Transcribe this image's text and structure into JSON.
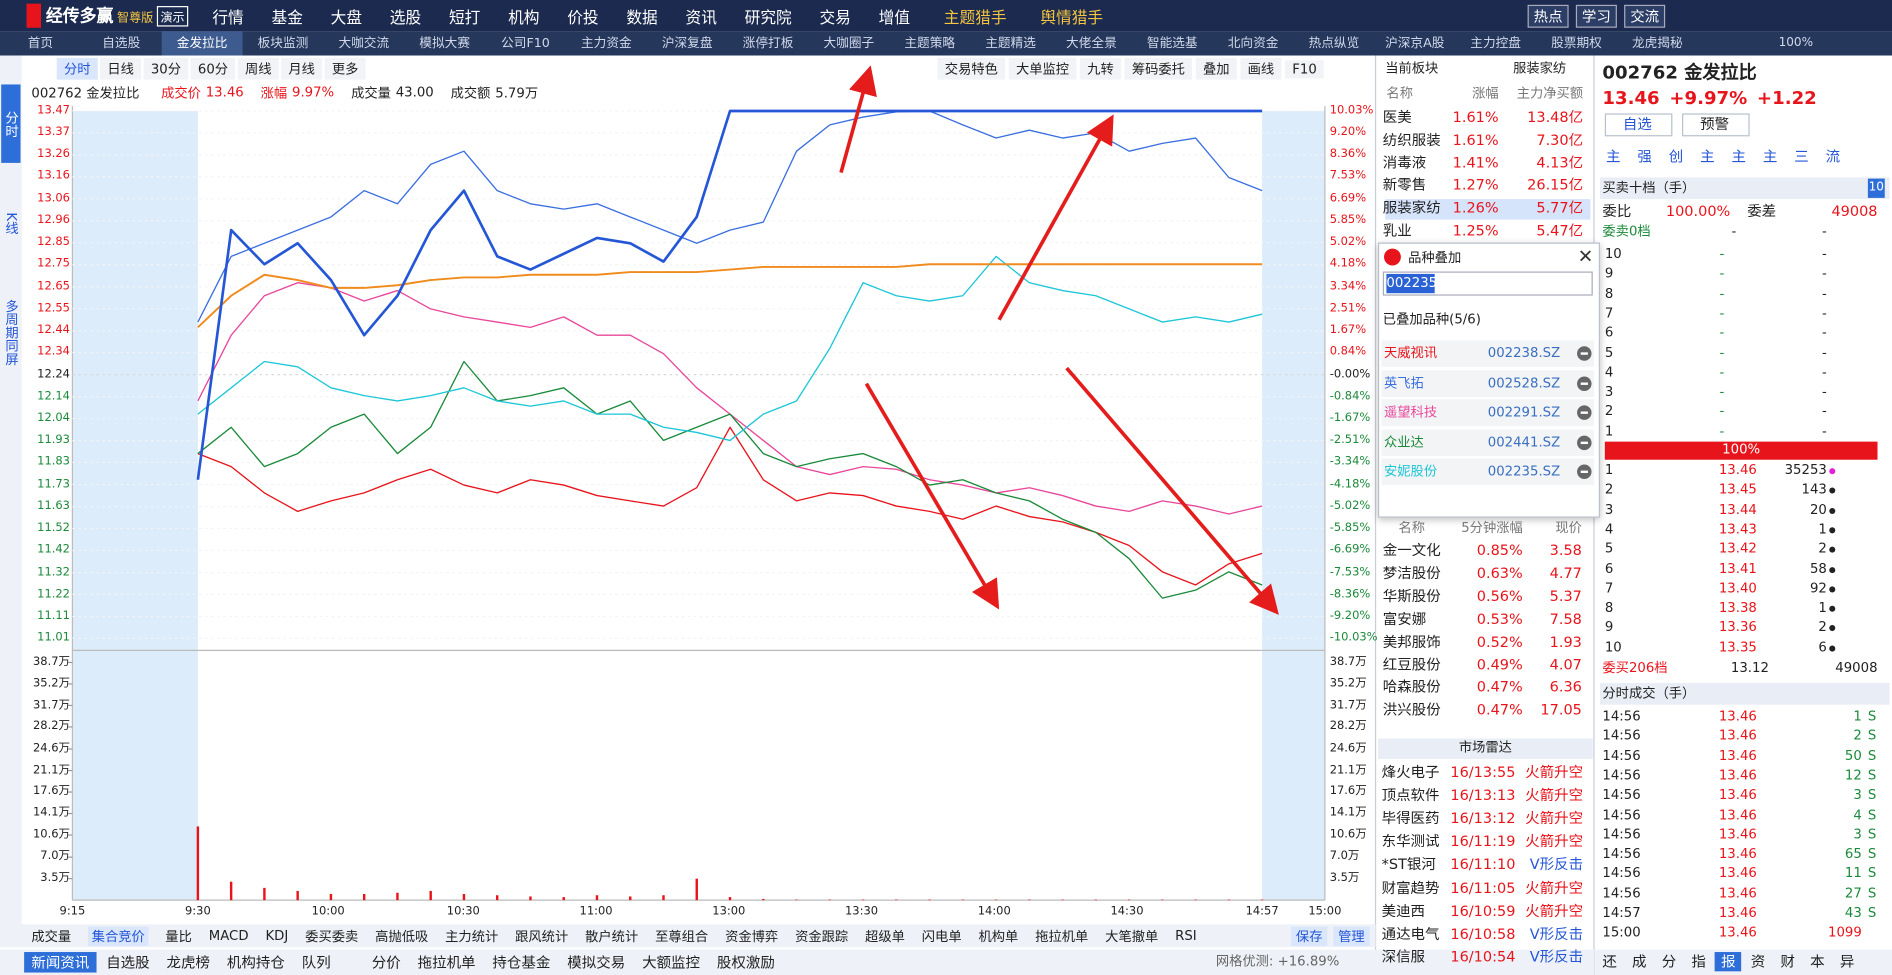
{
  "menu": {
    "logo": "经传多赢",
    "edition": "智尊版",
    "demo": "演示",
    "items": [
      "行情",
      "基金",
      "大盘",
      "选股",
      "短打",
      "机构",
      "价投",
      "数据",
      "资讯",
      "研究院",
      "交易",
      "增值"
    ],
    "hunters": [
      "主题猎手",
      "舆情猎手"
    ],
    "buttons": [
      "热点",
      "学习",
      "交流"
    ],
    "zoom": "100%"
  },
  "tabs": [
    "首页",
    "自选股",
    "金发拉比",
    "板块监测",
    "大咖交流",
    "模拟大赛",
    "公司F10",
    "主力资金",
    "沪深复盘",
    "涨停打板",
    "大咖圈子",
    "主题策略",
    "主题精选",
    "大佬全景",
    "智能选基",
    "北向资金",
    "热点纵览",
    "沪深京A股",
    "主力控盘",
    "股票期权",
    "龙虎揭秘"
  ],
  "sidebar": [
    "分时",
    "K线",
    "多周期同屏"
  ],
  "toolbar": {
    "periods": [
      "分时",
      "日线",
      "30分",
      "60分",
      "周线",
      "月线",
      "更多"
    ],
    "tools": [
      "交易特色",
      "大单监控",
      "九转",
      "筹码委托",
      "叠加",
      "画线",
      "F10"
    ]
  },
  "quote_line": [
    [
      "002762 金发拉比",
      ""
    ],
    [
      "成交价",
      "13.46"
    ],
    [
      "涨幅",
      "9.97%"
    ],
    [
      "成交量",
      "43.00"
    ],
    [
      "成交额",
      "5.79万"
    ]
  ],
  "chart": {
    "type": "line",
    "ylim": [
      -10.03,
      10.03
    ],
    "yticks": [
      {
        "value": 10.03,
        "label": "10.03%"
      },
      {
        "value": 9.2,
        "label": "9.20%"
      },
      {
        "value": 8.36,
        "label": "8.36%"
      },
      {
        "value": 7.53,
        "label": "7.53%"
      },
      {
        "value": 6.69,
        "label": "6.69%"
      },
      {
        "value": 5.85,
        "label": "5.85%"
      },
      {
        "value": 5.02,
        "label": "5.02%"
      },
      {
        "value": 4.18,
        "label": "4.18%"
      },
      {
        "value": 3.34,
        "label": "3.34%"
      },
      {
        "value": 2.51,
        "label": "2.51%"
      },
      {
        "value": 1.67,
        "label": "1.67%"
      },
      {
        "value": 0.84,
        "label": "0.84%"
      },
      {
        "value": 0,
        "label": "-0.00%"
      },
      {
        "value": -0.84,
        "label": "-0.84%"
      },
      {
        "value": -1.67,
        "label": "-1.67%"
      },
      {
        "value": -2.51,
        "label": "-2.51%"
      },
      {
        "value": -3.34,
        "label": "-3.34%"
      },
      {
        "value": -4.18,
        "label": "-4.18%"
      },
      {
        "value": -5.02,
        "label": "-5.02%"
      },
      {
        "value": -5.85,
        "label": "-5.85%"
      },
      {
        "value": -6.69,
        "label": "-6.69%"
      },
      {
        "value": -7.53,
        "label": "-7.53%"
      },
      {
        "value": -8.36,
        "label": "-8.36%"
      },
      {
        "value": -9.2,
        "label": "-9.20%"
      },
      {
        "value": -10.03,
        "label": "-10.03%"
      }
    ],
    "price_ticks": [
      "13.47",
      "13.37",
      "13.26",
      "13.16",
      "13.06",
      "12.96",
      "12.85",
      "12.75",
      "12.65",
      "12.55",
      "12.44",
      "12.34",
      "12.24",
      "12.14",
      "12.04",
      "11.93",
      "11.83",
      "11.73",
      "11.63",
      "11.52",
      "11.42",
      "11.32",
      "11.22",
      "11.11",
      "11.01"
    ],
    "volume_ylim": [
      0,
      38.7
    ],
    "volume_ticks": [
      {
        "value": 38.7,
        "label": "38.7万"
      },
      {
        "value": 35.2,
        "label": "35.2万"
      },
      {
        "value": 31.7,
        "label": "31.7万"
      },
      {
        "value": 28.2,
        "label": "28.2万"
      },
      {
        "value": 24.6,
        "label": "24.6万"
      },
      {
        "value": 21.1,
        "label": "21.1万"
      },
      {
        "value": 17.6,
        "label": "17.6万"
      },
      {
        "value": 14.1,
        "label": "14.1万"
      },
      {
        "value": 10.6,
        "label": "10.6万"
      },
      {
        "value": 7.0,
        "label": "7.0万"
      },
      {
        "value": 3.5,
        "label": "3.5万"
      }
    ],
    "time_labels": [
      "9:15",
      "9:30",
      "10:00",
      "10:30",
      "11:00",
      "13:00",
      "13:30",
      "14:00",
      "14:30",
      "14:57",
      "15:00"
    ],
    "price": {
      "color": "#2456d6",
      "values": [
        -4.0,
        5.5,
        4.2,
        5.0,
        3.6,
        1.5,
        3.0,
        5.5,
        7.0,
        4.5,
        4.0,
        4.6,
        5.2,
        5.0,
        4.3,
        6.0,
        10.03,
        10.03,
        10.03,
        10.03,
        10.03,
        10.03,
        10.03,
        10.03,
        10.03,
        10.03,
        10.03,
        10.03,
        10.03,
        10.03,
        10.03,
        10.03,
        10.03
      ]
    },
    "average": {
      "color": "#f08c1e",
      "values": [
        1.8,
        3.0,
        3.8,
        3.6,
        3.3,
        3.3,
        3.4,
        3.6,
        3.7,
        3.7,
        3.8,
        3.8,
        3.8,
        3.9,
        3.9,
        3.9,
        4.0,
        4.1,
        4.1,
        4.1,
        4.1,
        4.1,
        4.2,
        4.2,
        4.2,
        4.2,
        4.2,
        4.2,
        4.2,
        4.2,
        4.2,
        4.2,
        4.2
      ]
    },
    "volume": {
      "color": "#e8141b",
      "values": [
        12,
        3,
        2,
        1.5,
        1,
        1,
        1.2,
        1.5,
        1,
        0.8,
        0.6,
        0.5,
        0.8,
        0.6,
        0.8,
        3.5,
        0.5,
        0.2,
        0.1,
        0.1,
        0.1,
        0.1,
        0.1,
        0.1,
        0.1,
        0.1,
        0.1,
        0.1,
        0.1,
        0.1,
        0.1,
        0.1,
        0.1
      ]
    },
    "overlays": [
      {
        "name": "天威视讯",
        "code": "002238.SZ",
        "color": "#e8141b",
        "values": [
          -3.0,
          -3.5,
          -4.5,
          -5.2,
          -4.8,
          -4.5,
          -4.0,
          -3.6,
          -4.2,
          -4.5,
          -4.0,
          -4.2,
          -4.6,
          -4.8,
          -5.0,
          -4.3,
          -2.0,
          -4.0,
          -4.8,
          -4.5,
          -4.6,
          -5.0,
          -5.2,
          -5.5,
          -5.0,
          -5.4,
          -5.6,
          -6.0,
          -6.5,
          -7.5,
          -8.0,
          -7.2,
          -6.8
        ]
      },
      {
        "name": "英飞拓",
        "code": "002528.SZ",
        "color": "#3a6fe0",
        "values": [
          2.0,
          4.5,
          5.0,
          5.5,
          6.0,
          7.0,
          6.5,
          8.0,
          8.5,
          7.0,
          6.5,
          6.3,
          6.5,
          6.0,
          5.5,
          5.0,
          5.5,
          5.8,
          8.5,
          9.5,
          9.8,
          10.0,
          10.03,
          9.5,
          9.0,
          9.3,
          9.0,
          9.2,
          8.5,
          8.8,
          9.0,
          7.5,
          7.0
        ]
      },
      {
        "name": "遥望科技",
        "code": "002291.SZ",
        "color": "#e8479a",
        "values": [
          -1.0,
          1.5,
          3.0,
          3.5,
          3.3,
          2.8,
          3.2,
          2.5,
          2.2,
          2.0,
          1.8,
          2.2,
          1.5,
          1.5,
          0.8,
          -0.5,
          -1.5,
          -2.5,
          -3.5,
          -3.8,
          -3.5,
          -3.6,
          -4.0,
          -4.2,
          -4.5,
          -4.3,
          -4.6,
          -5.0,
          -5.2,
          -4.8,
          -5.0,
          -5.3,
          -5.0
        ]
      },
      {
        "name": "众业达",
        "code": "002441.SZ",
        "color": "#1a8a3a",
        "values": [
          -3.0,
          -2.0,
          -3.5,
          -3.0,
          -2.0,
          -1.5,
          -3.0,
          -2.0,
          0.5,
          -1.0,
          -0.8,
          -0.5,
          -1.5,
          -1.0,
          -2.5,
          -2.0,
          -1.5,
          -3.0,
          -3.5,
          -3.2,
          -3.0,
          -3.5,
          -4.2,
          -4.0,
          -4.5,
          -4.8,
          -5.5,
          -6.0,
          -7.0,
          -8.5,
          -8.2,
          -7.5,
          -8.0
        ]
      },
      {
        "name": "安妮股份",
        "code": "002235.SZ",
        "color": "#1cc6d8",
        "values": [
          -1.5,
          -0.5,
          0.5,
          0.3,
          -0.5,
          -0.8,
          -1.0,
          -0.8,
          -0.5,
          -1.0,
          -1.2,
          -1.0,
          -1.5,
          -1.5,
          -2.0,
          -2.2,
          -2.5,
          -1.5,
          -1.0,
          1.0,
          3.5,
          3.0,
          2.8,
          3.0,
          4.5,
          3.5,
          3.2,
          3.0,
          2.5,
          2.0,
          2.2,
          2.0,
          2.3
        ]
      }
    ]
  },
  "sector": {
    "title": "当前板块",
    "current": "服装家纺",
    "columns": [
      "名称",
      "涨幅",
      "主力净买额"
    ],
    "rows": [
      [
        "医美",
        "1.61%",
        "13.48亿"
      ],
      [
        "纺织服装",
        "1.61%",
        "7.30亿"
      ],
      [
        "消毒液",
        "1.41%",
        "4.13亿"
      ],
      [
        "新零售",
        "1.27%",
        "26.15亿"
      ],
      [
        "服装家纺",
        "1.26%",
        "5.77亿"
      ],
      [
        "乳业",
        "1.25%",
        "5.47亿"
      ]
    ]
  },
  "overlay_popup": {
    "title": "品种叠加",
    "input": "002235",
    "added": "已叠加品种(5/6)"
  },
  "movers": {
    "columns": [
      "名称",
      "5分钟涨幅",
      "现价"
    ],
    "rows": [
      [
        "金一文化",
        "0.85%",
        "3.58"
      ],
      [
        "梦洁股份",
        "0.63%",
        "4.77"
      ],
      [
        "华斯股份",
        "0.56%",
        "5.37"
      ],
      [
        "富安娜",
        "0.53%",
        "7.58"
      ],
      [
        "美邦服饰",
        "0.52%",
        "1.93"
      ],
      [
        "红豆股份",
        "0.49%",
        "4.07"
      ],
      [
        "哈森股份",
        "0.47%",
        "6.36"
      ],
      [
        "洪兴股份",
        "0.47%",
        "17.05"
      ]
    ]
  },
  "radar": {
    "title": "市场雷达",
    "rows": [
      [
        "烽火电子",
        "16/13:55",
        "火箭升空"
      ],
      [
        "顶点软件",
        "16/13:13",
        "火箭升空"
      ],
      [
        "毕得医药",
        "16/13:12",
        "火箭升空"
      ],
      [
        "东华测试",
        "16/11:19",
        "火箭升空"
      ],
      [
        "*ST银河",
        "16/11:10",
        "V形反击"
      ],
      [
        "财富趋势",
        "16/11:05",
        "火箭升空"
      ],
      [
        "美迪西",
        "16/10:59",
        "火箭升空"
      ],
      [
        "通达电气",
        "16/10:58",
        "V形反击"
      ],
      [
        "深信服",
        "16/10:54",
        "V形反击"
      ]
    ]
  },
  "stock": {
    "title": "002762 金发拉比",
    "price": "13.46",
    "change_pct": "+9.97%",
    "change": "+1.22",
    "buttons": [
      "自选",
      "预警"
    ],
    "tags": [
      "主",
      "强",
      "创",
      "主",
      "主",
      "主",
      "三",
      "流"
    ]
  },
  "order_book": {
    "title": "买卖十档（手）",
    "levels": "10",
    "ratio_label": "委比",
    "ratio": "100.00%",
    "diff_label": "委差",
    "diff": "49008",
    "sell_total": [
      "委卖0档",
      "-",
      "-"
    ],
    "sell": [
      [
        "10",
        "-",
        "-"
      ],
      [
        "9",
        "-",
        "-"
      ],
      [
        "8",
        "-",
        "-"
      ],
      [
        "7",
        "-",
        "-"
      ],
      [
        "6",
        "-",
        "-"
      ],
      [
        "5",
        "-",
        "-"
      ],
      [
        "4",
        "-",
        "-"
      ],
      [
        "3",
        "-",
        "-"
      ],
      [
        "2",
        "-",
        "-"
      ],
      [
        "1",
        "-",
        "-"
      ]
    ],
    "bar": "100%",
    "buy": [
      [
        "1",
        "13.46",
        "35253"
      ],
      [
        "2",
        "13.45",
        "143"
      ],
      [
        "3",
        "13.44",
        "20"
      ],
      [
        "4",
        "13.43",
        "1"
      ],
      [
        "5",
        "13.42",
        "2"
      ],
      [
        "6",
        "13.41",
        "58"
      ],
      [
        "7",
        "13.40",
        "92"
      ],
      [
        "8",
        "13.38",
        "1"
      ],
      [
        "9",
        "13.36",
        "2"
      ],
      [
        "10",
        "13.35",
        "6"
      ]
    ],
    "buy_total": [
      "委买206档",
      "13.12",
      "49008"
    ]
  },
  "ticks": {
    "title": "分时成交（手）",
    "rows": [
      [
        "14:56",
        "13.46",
        "1",
        "S"
      ],
      [
        "14:56",
        "13.46",
        "2",
        "S"
      ],
      [
        "14:56",
        "13.46",
        "50",
        "S"
      ],
      [
        "14:56",
        "13.46",
        "12",
        "S"
      ],
      [
        "14:56",
        "13.46",
        "3",
        "S"
      ],
      [
        "14:56",
        "13.46",
        "4",
        "S"
      ],
      [
        "14:56",
        "13.46",
        "3",
        "S"
      ],
      [
        "14:56",
        "13.46",
        "65",
        "S"
      ],
      [
        "14:56",
        "13.46",
        "11",
        "S"
      ],
      [
        "14:56",
        "13.46",
        "27",
        "S"
      ],
      [
        "14:57",
        "13.46",
        "43",
        "S"
      ],
      [
        "15:00",
        "13.46",
        "1099",
        ""
      ]
    ]
  },
  "right_tabs": [
    "还",
    "成",
    "分",
    "指",
    "报",
    "资",
    "财",
    "本",
    "异"
  ],
  "indicators": {
    "items": [
      "成交量",
      "集合竞价",
      "量比",
      "MACD",
      "KDJ",
      "委买委卖",
      "高抛低吸",
      "主力统计",
      "跟风统计",
      "散户统计",
      "至尊组合",
      "资金博弈",
      "资金跟踪",
      "超级单",
      "闪电单",
      "机构单",
      "拖拉机单",
      "大笔撤单",
      "RSI"
    ],
    "actions": [
      "保存",
      "管理"
    ]
  },
  "bottom_bar": {
    "items": [
      "新闻资讯",
      "自选股",
      "龙虎榜",
      "机构持仓",
      "队列",
      "分价",
      "拖拉机单",
      "持仓基金",
      "模拟交易",
      "大额监控",
      "股权激励"
    ],
    "status": "网格优测: +16.89%"
  }
}
